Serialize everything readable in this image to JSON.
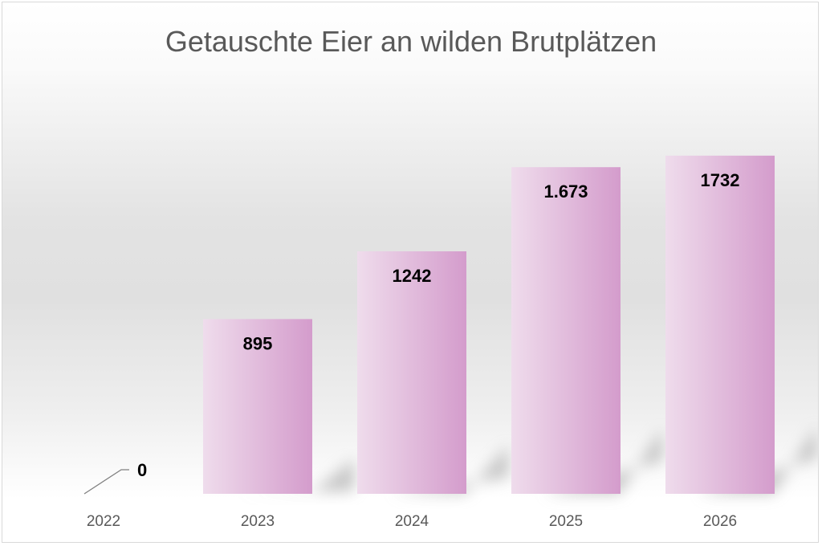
{
  "chart_data": {
    "type": "bar",
    "title": "Getauschte Eier an wilden Brutplätzen",
    "categories": [
      "2022",
      "2023",
      "2024",
      "2025",
      "2026"
    ],
    "values": [
      0,
      895,
      1242,
      1673,
      1732
    ],
    "data_labels": [
      "0",
      "895",
      "1242",
      "1.673",
      "1732"
    ],
    "xlabel": "",
    "ylabel": "",
    "ylim": [
      0,
      1900
    ],
    "grid": false,
    "legend": "none",
    "colors": {
      "bar_light": "#efdcec",
      "bar_dark": "#d49ccc",
      "shadow": "#9a9a9a",
      "tick_label": "#595959",
      "data_label": "#000000",
      "leader_line": "#7f7f7f"
    }
  }
}
